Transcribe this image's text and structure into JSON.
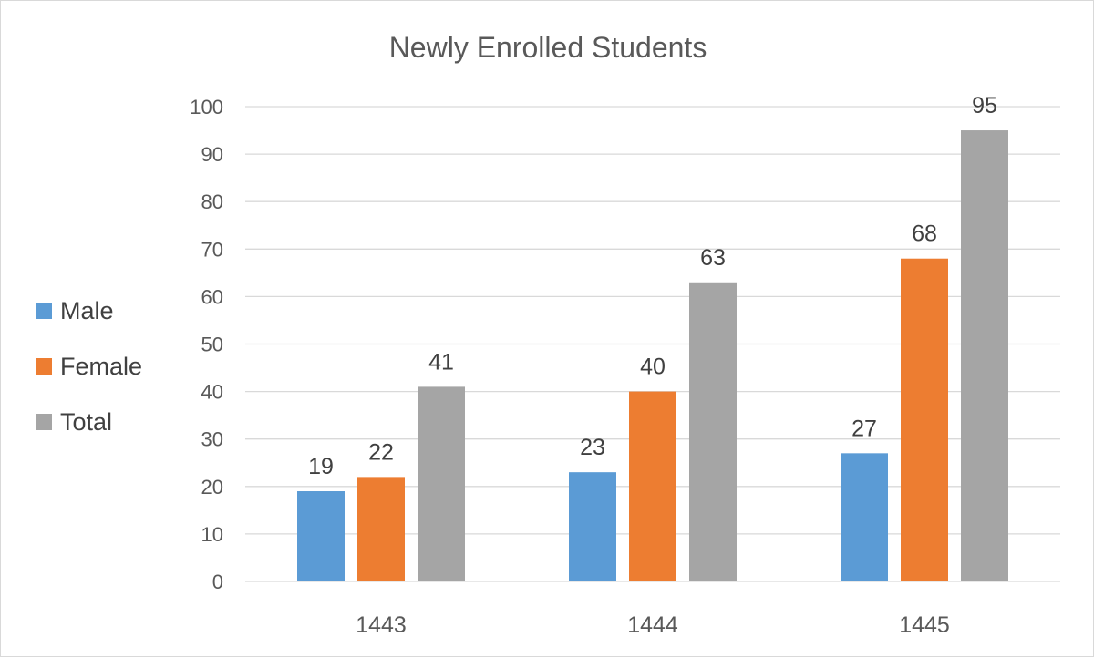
{
  "chart_data": {
    "type": "bar",
    "title": "Newly Enrolled Students",
    "categories": [
      "1443",
      "1444",
      "1445"
    ],
    "series": [
      {
        "name": "Male",
        "values": [
          19,
          23,
          27
        ],
        "color": "#5b9bd5"
      },
      {
        "name": "Female",
        "values": [
          22,
          40,
          68
        ],
        "color": "#ed7d31"
      },
      {
        "name": "Total",
        "values": [
          41,
          63,
          95
        ],
        "color": "#a5a5a5"
      }
    ],
    "ylim": [
      0,
      100
    ],
    "yticks": [
      0,
      10,
      20,
      30,
      40,
      50,
      60,
      70,
      80,
      90,
      100
    ],
    "xlabel": "",
    "ylabel": "",
    "grid": true,
    "legend_position": "left",
    "data_labels": true
  }
}
